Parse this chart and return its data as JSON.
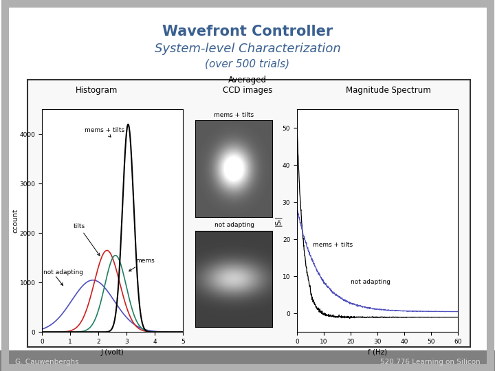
{
  "title_line1": "Wavefront Controller",
  "title_line2": "System-level Characterization",
  "title_line3": "(over 500 trials)",
  "title_color": "#3A6090",
  "title2_color": "#3A6090",
  "title3_color": "#3A6090",
  "slide_bg": "#FFFFFF",
  "outer_frame_color": "#A0A0A0",
  "box_bg": "#F8F8F8",
  "box_edge": "#333333",
  "footer_left": "G. Cauwenberghs",
  "footer_right": "520.776 Learning on Silicon",
  "footer_color": "#DDDDDD",
  "footer_bg": "#808080",
  "hist_title": "Histogram",
  "ccd_title1": "Averaged",
  "ccd_title2": "CCD images",
  "spec_title": "Magnitude Spectrum",
  "hist_xlabel": "J (volt)",
  "hist_ylabel": "ccount",
  "spec_xlabel": "f (Hz)",
  "spec_ylabel": "|Sₗ|",
  "color_na": "#5050C0",
  "color_tilts": "#CC2020",
  "color_mems": "#208060",
  "color_mt": "#000000",
  "color_spec_mt": "#000000",
  "color_spec_na": "#5050C0"
}
